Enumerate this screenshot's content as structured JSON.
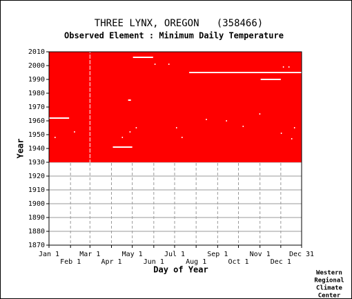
{
  "chart_data": {
    "type": "coverage",
    "title": "THREE LYNX, OREGON   (358466)",
    "subtitle": "Observed Element : Minimum Daily Temperature",
    "x_label": "Day of Year",
    "y_label": "Year",
    "credit": [
      "Western",
      "Regional",
      "Climate",
      "Center"
    ],
    "xlim": [
      1,
      365
    ],
    "xticks": [
      {
        "value": 1,
        "label": "Jan 1"
      },
      {
        "value": 32,
        "label": "Feb 1"
      },
      {
        "value": 60,
        "label": "Mar 1"
      },
      {
        "value": 91,
        "label": "Apr 1"
      },
      {
        "value": 121,
        "label": "May 1"
      },
      {
        "value": 152,
        "label": "Jun 1"
      },
      {
        "value": 182,
        "label": "Jul 1"
      },
      {
        "value": 213,
        "label": "Aug 1"
      },
      {
        "value": 244,
        "label": "Sep 1"
      },
      {
        "value": 274,
        "label": "Oct 1"
      },
      {
        "value": 305,
        "label": "Nov 1"
      },
      {
        "value": 335,
        "label": "Dec 1"
      },
      {
        "value": 365,
        "label": "Dec 31"
      }
    ],
    "ylim": [
      1870,
      2010
    ],
    "yticks": [
      1870,
      1880,
      1890,
      1900,
      1910,
      1920,
      1930,
      1940,
      1950,
      1960,
      1970,
      1980,
      1990,
      2000,
      2010
    ],
    "grid": true,
    "color": "#ff0000",
    "coverage": {
      "years": [
        1930,
        2010
      ],
      "days": [
        1,
        365
      ]
    },
    "leap_day": 60,
    "gaps": [
      {
        "year": 1962,
        "start": 1,
        "end": 30
      },
      {
        "year": 2006,
        "start": 122,
        "end": 151
      },
      {
        "year": 2001,
        "start": 153,
        "end": 153
      },
      {
        "year": 2001,
        "start": 173,
        "end": 173
      },
      {
        "year": 1995,
        "start": 203,
        "end": 365
      },
      {
        "year": 1990,
        "start": 306,
        "end": 335
      },
      {
        "year": 1999,
        "start": 338,
        "end": 338
      },
      {
        "year": 1999,
        "start": 346,
        "end": 346
      },
      {
        "year": 1975,
        "start": 115,
        "end": 119
      },
      {
        "year": 1941,
        "start": 93,
        "end": 121
      },
      {
        "year": 1952,
        "start": 37,
        "end": 37
      },
      {
        "year": 1948,
        "start": 9,
        "end": 9
      },
      {
        "year": 1955,
        "start": 126,
        "end": 126
      },
      {
        "year": 1952,
        "start": 117,
        "end": 117
      },
      {
        "year": 1948,
        "start": 106,
        "end": 106
      },
      {
        "year": 1955,
        "start": 184,
        "end": 184
      },
      {
        "year": 1948,
        "start": 192,
        "end": 192
      },
      {
        "year": 1961,
        "start": 227,
        "end": 227
      },
      {
        "year": 1960,
        "start": 256,
        "end": 256
      },
      {
        "year": 1956,
        "start": 280,
        "end": 280
      },
      {
        "year": 1965,
        "start": 304,
        "end": 304
      },
      {
        "year": 1951,
        "start": 335,
        "end": 335
      },
      {
        "year": 1955,
        "start": 354,
        "end": 354
      },
      {
        "year": 1947,
        "start": 350,
        "end": 350
      }
    ]
  }
}
